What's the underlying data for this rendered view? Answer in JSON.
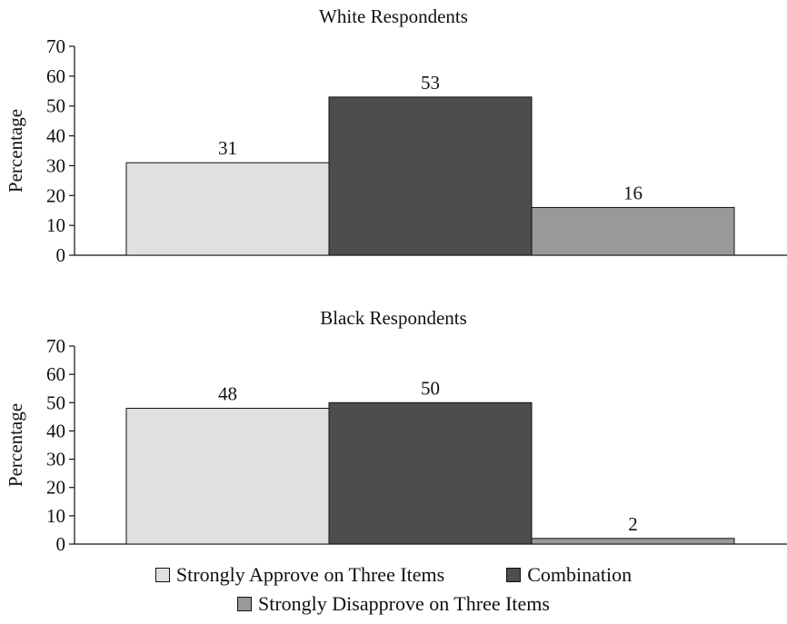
{
  "colors": {
    "strongly_approve": "#e0e0e0",
    "combination": "#4d4d4d",
    "strongly_disapprove": "#999999",
    "axis": "#111111"
  },
  "legend": {
    "items": [
      {
        "label": "Strongly Approve on Three Items",
        "color_key": "strongly_approve"
      },
      {
        "label": "Combination",
        "color_key": "combination"
      },
      {
        "label": "Strongly Disapprove on Three Items",
        "color_key": "strongly_disapprove"
      }
    ]
  },
  "chart_data": [
    {
      "type": "bar",
      "title": "White Respondents",
      "ylabel": "Percentage",
      "xlabel": "",
      "ylim": [
        0,
        70
      ],
      "yticks": [
        0,
        10,
        20,
        30,
        40,
        50,
        60,
        70
      ],
      "categories": [
        "Strongly Approve on Three Items",
        "Combination",
        "Strongly Disapprove on Three Items"
      ],
      "values": [
        31,
        53,
        16
      ],
      "data_labels": [
        "31",
        "53",
        "16"
      ],
      "grid": false,
      "legend_position": "bottom"
    },
    {
      "type": "bar",
      "title": "Black Respondents",
      "ylabel": "Percentage",
      "xlabel": "",
      "ylim": [
        0,
        70
      ],
      "yticks": [
        0,
        10,
        20,
        30,
        40,
        50,
        60,
        70
      ],
      "categories": [
        "Strongly Approve on Three Items",
        "Combination",
        "Strongly Disapprove on Three Items"
      ],
      "values": [
        48,
        50,
        2
      ],
      "data_labels": [
        "48",
        "50",
        "2"
      ],
      "grid": false,
      "legend_position": "bottom"
    }
  ]
}
